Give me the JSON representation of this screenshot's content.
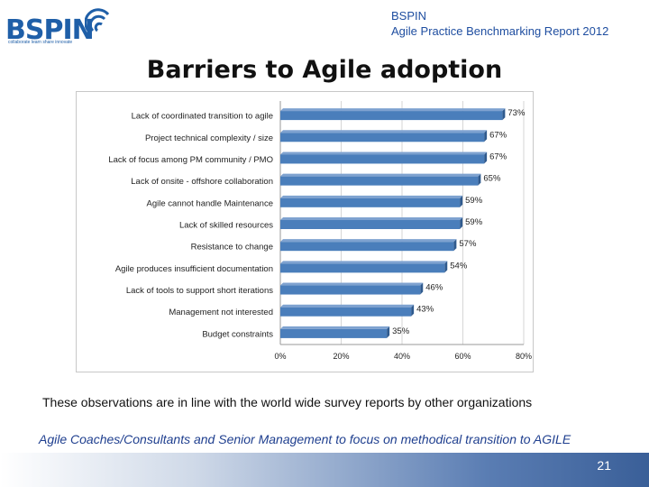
{
  "header": {
    "logo_text": "BSPIN",
    "logo_tagline": "collaborate learn share innovate",
    "org": "BSPIN",
    "report": "Agile Practice Benchmarking Report 2012"
  },
  "title": "Barriers to Agile adoption",
  "chart_data": {
    "type": "bar",
    "orientation": "horizontal",
    "title": "",
    "xlabel": "",
    "ylabel": "",
    "xlim": [
      0,
      80
    ],
    "x_ticks": [
      "0%",
      "20%",
      "40%",
      "60%",
      "80%"
    ],
    "grid": true,
    "bar_color": "#4a7ebb",
    "categories": [
      "Lack of coordinated transition to agile",
      "Project technical complexity / size",
      "Lack of focus among PM community / PMO",
      "Lack of onsite - offshore collaboration",
      "Agile cannot handle Maintenance",
      "Lack of skilled resources",
      "Resistance to change",
      "Agile produces insufficient documentation",
      "Lack of tools to support short iterations",
      "Management not interested",
      "Budget constraints"
    ],
    "values": [
      73,
      67,
      67,
      65,
      59,
      59,
      57,
      54,
      46,
      43,
      35
    ],
    "value_labels": [
      "73%",
      "67%",
      "67%",
      "65%",
      "59%",
      "59%",
      "57%",
      "54%",
      "46%",
      "43%",
      "35%"
    ]
  },
  "observation": "These observations are in line with the world wide survey reports by other organizations",
  "focus_note": "Agile Coaches/Consultants and Senior Management to focus on methodical transition to AGILE",
  "page_number": "21"
}
